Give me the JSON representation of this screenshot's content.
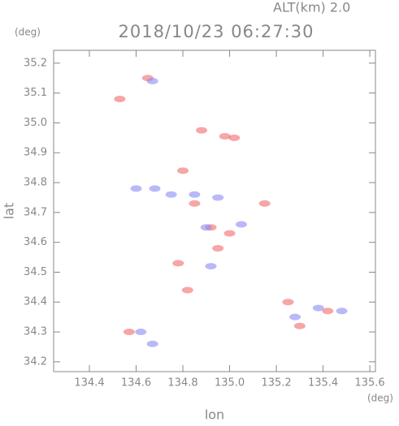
{
  "chart_data": {
    "type": "scatter",
    "title": "2018/10/23 06:27:30",
    "subtitle": "ALT(km)  2.0",
    "x_label": "lon",
    "y_label": "lat",
    "x_unit": "(deg)",
    "y_unit": "(deg)",
    "xlim": [
      134.247,
      135.624
    ],
    "ylim": [
      34.167,
      35.243
    ],
    "xticks": [
      134.4,
      134.6,
      134.8,
      {
        "value": 135,
        "label": "135.0"
      },
      135.2,
      135.4,
      135.6
    ],
    "yticks": [
      34.2,
      34.3,
      34.4,
      34.5,
      34.6,
      34.7,
      34.8,
      34.9,
      {
        "value": 35,
        "label": "35.0"
      },
      35.1,
      35.2
    ],
    "series": [
      {
        "color": "#f06a6a",
        "x": [
          134.65,
          134.88,
          134.98,
          135.02,
          134.8,
          134.85,
          134.92,
          134.78,
          134.95,
          135.0,
          134.57,
          135.25,
          135.3,
          135.42,
          134.53,
          135.15,
          134.82
        ],
        "y": [
          35.15,
          34.975,
          34.955,
          34.95,
          34.84,
          34.73,
          34.65,
          34.53,
          34.58,
          34.63,
          34.3,
          34.4,
          34.32,
          34.37,
          35.08,
          34.73,
          34.44
        ]
      },
      {
        "color": "#8a8af5",
        "x": [
          134.67,
          134.6,
          134.75,
          134.85,
          134.95,
          135.05,
          134.92,
          134.62,
          135.28,
          135.38,
          134.68,
          134.9,
          134.67,
          135.48
        ],
        "y": [
          35.14,
          34.78,
          34.76,
          34.76,
          34.75,
          34.66,
          34.52,
          34.3,
          34.35,
          34.38,
          34.78,
          34.65,
          34.26,
          34.37
        ]
      }
    ]
  }
}
